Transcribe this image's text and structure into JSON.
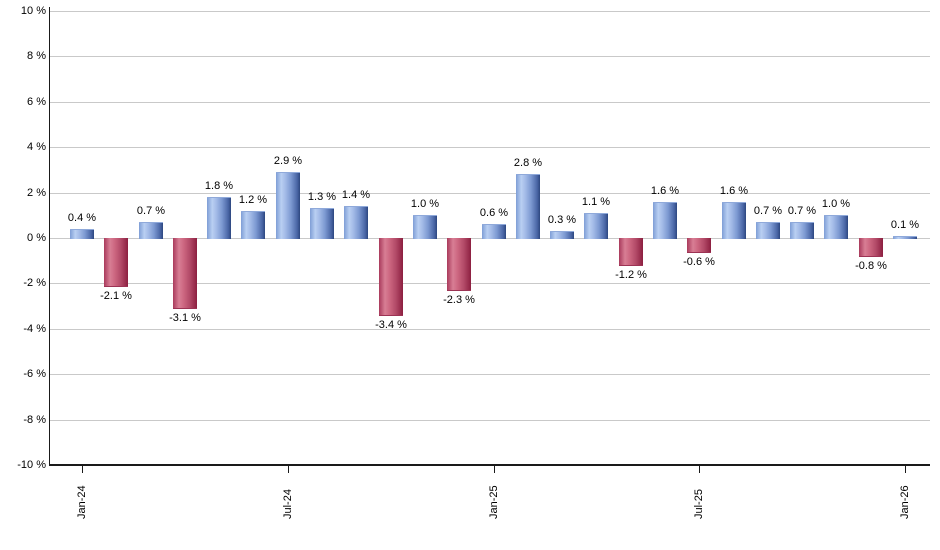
{
  "chart_data": {
    "type": "bar",
    "title": "",
    "xlabel": "",
    "ylabel": "",
    "ylim": [
      -10,
      10
    ],
    "y_tick_step": 2,
    "grid": true,
    "legend": "none",
    "values": [
      0.4,
      -2.1,
      0.7,
      -3.1,
      1.8,
      1.2,
      2.9,
      1.3,
      1.4,
      -3.4,
      1.0,
      -2.3,
      0.6,
      2.8,
      0.3,
      1.1,
      -1.2,
      1.6,
      -0.6,
      1.6,
      0.7,
      0.7,
      1.0,
      -0.8,
      0.1
    ],
    "bar_value_labels": [
      "0.4 %",
      "-2.1 %",
      "0.7 %",
      "-3.1 %",
      "1.8 %",
      "1.2 %",
      "2.9 %",
      "1.3 %",
      "1.4 %",
      "-3.4 %",
      "1.0 %",
      "-2.3 %",
      "0.6 %",
      "2.8 %",
      "0.3 %",
      "1.1 %",
      "-1.2 %",
      "1.6 %",
      "-0.6 %",
      "1.6 %",
      "0.7 %",
      "0.7 %",
      "1.0 %",
      "-0.8 %",
      "0.1 %"
    ],
    "x_ticks": [
      {
        "index": 0,
        "label": "Jan-24"
      },
      {
        "index": 6,
        "label": "Jul-24"
      },
      {
        "index": 12,
        "label": "Jan-25"
      },
      {
        "index": 18,
        "label": "Jul-25"
      },
      {
        "index": 24,
        "label": "Jan-26"
      }
    ],
    "y_ticks": [
      {
        "value": 10,
        "label": "10 %"
      },
      {
        "value": 8,
        "label": "8 %"
      },
      {
        "value": 6,
        "label": "6 %"
      },
      {
        "value": 4,
        "label": "4 %"
      },
      {
        "value": 2,
        "label": "2 %"
      },
      {
        "value": 0,
        "label": "0 %"
      },
      {
        "value": -2,
        "label": "-2 %"
      },
      {
        "value": -4,
        "label": "-4 %"
      },
      {
        "value": -6,
        "label": "-6 %"
      },
      {
        "value": -8,
        "label": "-8 %"
      },
      {
        "value": -10,
        "label": "-10 %"
      }
    ],
    "colors": {
      "positive_bar": "#7f9cd0",
      "negative_bar": "#c05570",
      "gridline": "#c9c9c9",
      "axis": "#1a1a1a",
      "label_text": "#000000",
      "background": "#ffffff"
    }
  }
}
